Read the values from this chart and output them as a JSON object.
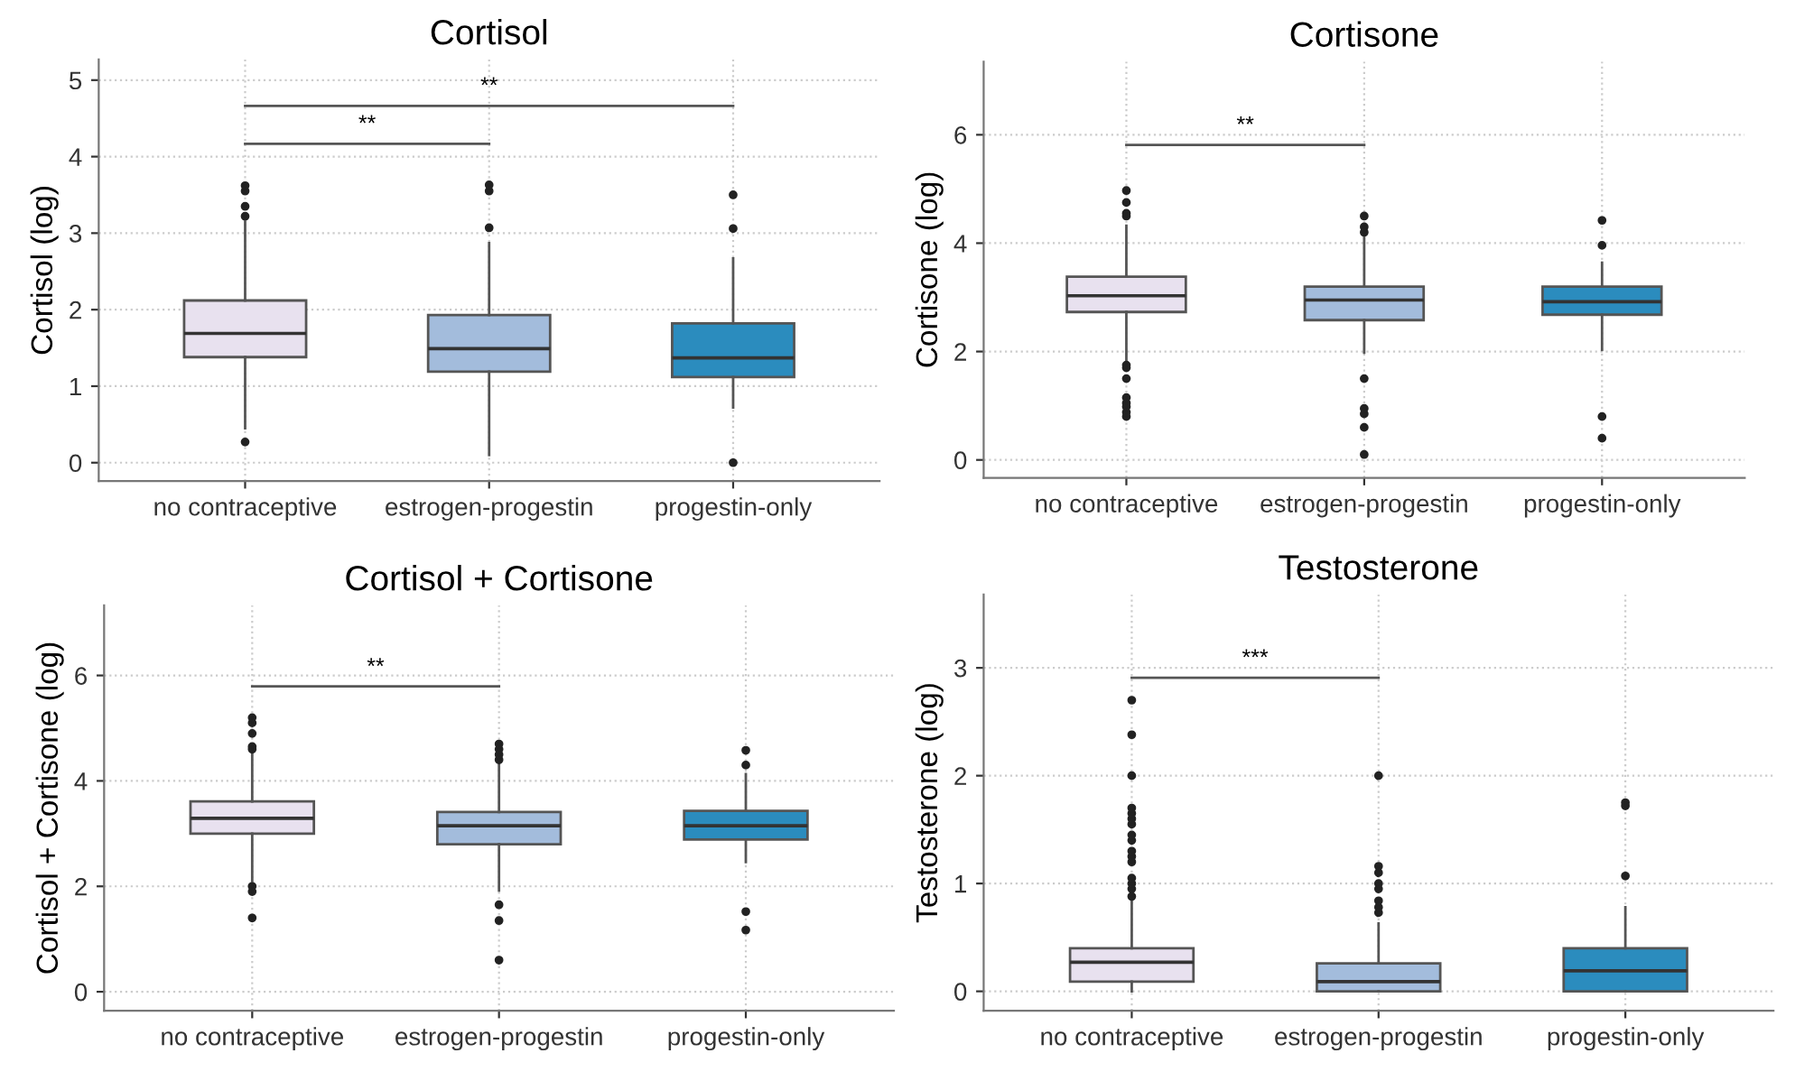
{
  "chart_data": [
    {
      "type": "box",
      "title": "Cortisol",
      "ylabel": "Cortisol (log)",
      "categories": [
        "no contraceptive",
        "estrogen-progestin",
        "progestin-only"
      ],
      "colors": [
        "#e8e1ef",
        "#a3bcdc",
        "#2b8cbe"
      ],
      "ylim": [
        -0.24,
        5.27
      ],
      "yticks": [
        0,
        1,
        2,
        3,
        4,
        5
      ],
      "grid": true,
      "boxes": [
        {
          "low": 0.45,
          "q1": 1.38,
          "median": 1.69,
          "q3": 2.12,
          "high": 3.15,
          "outliers": [
            0.27,
            3.22,
            3.35,
            3.55,
            3.62
          ]
        },
        {
          "low": 0.1,
          "q1": 1.19,
          "median": 1.49,
          "q3": 1.93,
          "high": 2.87,
          "outliers": [
            3.07,
            3.55,
            3.63
          ]
        },
        {
          "low": 0.72,
          "q1": 1.12,
          "median": 1.37,
          "q3": 1.82,
          "high": 2.67,
          "outliers": [
            0.0,
            3.06,
            3.5
          ]
        }
      ],
      "annotations": [
        "**",
        "**"
      ]
    },
    {
      "type": "box",
      "title": "Cortisone",
      "ylabel": "Cortisone (log)",
      "categories": [
        "no contraceptive",
        "estrogen-progestin",
        "progestin-only"
      ],
      "colors": [
        "#e8e1ef",
        "#a3bcdc",
        "#2b8cbe"
      ],
      "ylim": [
        -0.33,
        7.35
      ],
      "yticks": [
        0,
        2,
        4,
        6
      ],
      "grid": true,
      "boxes": [
        {
          "low": 1.82,
          "q1": 2.73,
          "median": 3.03,
          "q3": 3.38,
          "high": 4.32,
          "outliers": [
            0.8,
            0.88,
            0.98,
            1.05,
            1.15,
            1.5,
            1.7,
            1.75,
            4.5,
            4.55,
            4.75,
            4.97
          ]
        },
        {
          "low": 1.98,
          "q1": 2.58,
          "median": 2.95,
          "q3": 3.2,
          "high": 4.1,
          "outliers": [
            0.1,
            0.6,
            0.85,
            0.95,
            1.5,
            4.2,
            4.3,
            4.5
          ]
        },
        {
          "low": 2.03,
          "q1": 2.68,
          "median": 2.92,
          "q3": 3.2,
          "high": 3.64,
          "outliers": [
            0.4,
            0.8,
            3.96,
            4.42
          ]
        }
      ],
      "annotations": [
        "**"
      ]
    },
    {
      "type": "box",
      "title": "Cortisol + Cortisone",
      "ylabel": "Cortisol + Cortisone (log)",
      "categories": [
        "no contraceptive",
        "estrogen-progestin",
        "progestin-only"
      ],
      "colors": [
        "#e8e1ef",
        "#a3bcdc",
        "#2b8cbe"
      ],
      "ylim": [
        -0.36,
        7.33
      ],
      "yticks": [
        0,
        2,
        4,
        6
      ],
      "grid": true,
      "boxes": [
        {
          "low": 2.1,
          "q1": 3.0,
          "median": 3.29,
          "q3": 3.61,
          "high": 4.56,
          "outliers": [
            1.4,
            1.9,
            2.0,
            4.6,
            4.65,
            4.9,
            5.1,
            5.2
          ]
        },
        {
          "low": 1.92,
          "q1": 2.8,
          "median": 3.15,
          "q3": 3.41,
          "high": 4.36,
          "outliers": [
            0.6,
            1.35,
            1.65,
            4.4,
            4.5,
            4.6,
            4.7
          ]
        },
        {
          "low": 2.46,
          "q1": 2.89,
          "median": 3.15,
          "q3": 3.43,
          "high": 4.13,
          "outliers": [
            1.17,
            1.52,
            4.3,
            4.58
          ]
        }
      ],
      "annotations": [
        "**"
      ]
    },
    {
      "type": "box",
      "title": "Testosterone",
      "ylabel": "Testosterone (log)",
      "categories": [
        "no contraceptive",
        "estrogen-progestin",
        "progestin-only"
      ],
      "colors": [
        "#e8e1ef",
        "#a3bcdc",
        "#2b8cbe"
      ],
      "ylim": [
        -0.18,
        3.68
      ],
      "yticks": [
        0,
        1,
        2,
        3
      ],
      "grid": true,
      "boxes": [
        {
          "low": 0.0,
          "q1": 0.09,
          "median": 0.27,
          "q3": 0.4,
          "high": 0.85,
          "outliers": [
            0.88,
            0.95,
            1.0,
            1.05,
            1.2,
            1.25,
            1.3,
            1.4,
            1.45,
            1.55,
            1.6,
            1.65,
            1.7,
            2.0,
            2.38,
            2.7
          ]
        },
        {
          "low": 0.0,
          "q1": 0.0,
          "median": 0.09,
          "q3": 0.26,
          "high": 0.63,
          "outliers": [
            0.73,
            0.78,
            0.84,
            0.95,
            1.0,
            1.1,
            1.16,
            2.0
          ]
        },
        {
          "low": 0.0,
          "q1": 0.0,
          "median": 0.19,
          "q3": 0.4,
          "high": 0.78,
          "outliers": [
            1.07,
            1.72,
            1.75
          ]
        }
      ],
      "annotations": [
        "***"
      ]
    }
  ]
}
